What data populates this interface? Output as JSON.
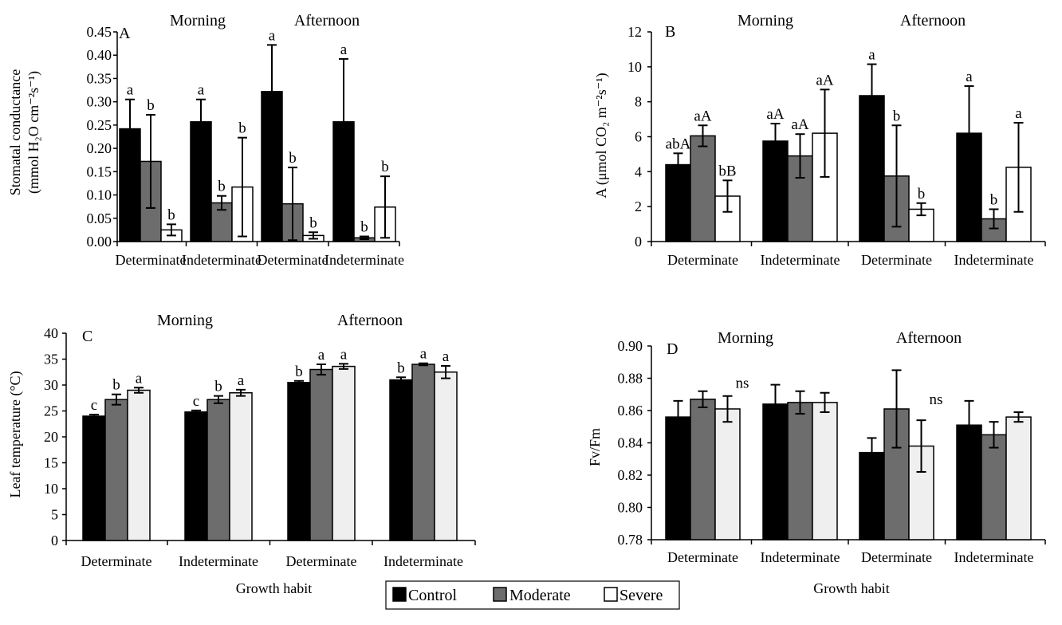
{
  "legend": {
    "entries": [
      {
        "label": "Control",
        "color": "#000000"
      },
      {
        "label": "Moderate",
        "color": "#6d6d6d"
      },
      {
        "label": "Severe",
        "color": "#ffffff"
      }
    ]
  },
  "chart_data": [
    {
      "id": "A",
      "type": "bar",
      "panel_label": "A",
      "period_labels": [
        "Morning",
        "Afternoon"
      ],
      "categories": [
        "Determinate",
        "Indeterminate",
        "Determinate",
        "Indeterminate"
      ],
      "xlabel": "",
      "ylabel": [
        "Stomatal conductance",
        "(mmol H₂O cm⁻²s⁻¹)"
      ],
      "ylim": [
        0,
        0.45
      ],
      "yticks": [
        0,
        0.05,
        0.1,
        0.15,
        0.2,
        0.25,
        0.3,
        0.35,
        0.4,
        0.45
      ],
      "ytick_decimals": 2,
      "series": [
        {
          "name": "Control",
          "color": "#000000",
          "values": [
            0.242,
            0.257,
            0.322,
            0.257
          ],
          "errors": [
            0.063,
            0.048,
            0.1,
            0.135
          ],
          "labels": [
            "a",
            "a",
            "a",
            "a"
          ]
        },
        {
          "name": "Moderate",
          "color": "#6d6d6d",
          "values": [
            0.172,
            0.083,
            0.081,
            0.008
          ],
          "errors": [
            0.1,
            0.015,
            0.078,
            0.003
          ],
          "labels": [
            "b",
            "b",
            "b",
            "b"
          ]
        },
        {
          "name": "Severe",
          "color": "#ffffff",
          "values": [
            0.025,
            0.117,
            0.013,
            0.074
          ],
          "errors": [
            0.012,
            0.106,
            0.007,
            0.066
          ],
          "labels": [
            "b",
            "b",
            "b",
            "b"
          ]
        }
      ],
      "annotations": []
    },
    {
      "id": "B",
      "type": "bar",
      "panel_label": "B",
      "period_labels": [
        "Morning",
        "Afternoon"
      ],
      "categories": [
        "Determinate",
        "Indeterminate",
        "Determinate",
        "Indeterminate"
      ],
      "xlabel": "",
      "ylabel": [
        "A (μmol CO₂ m⁻²s⁻¹)"
      ],
      "ylim": [
        0,
        12
      ],
      "yticks": [
        0,
        2,
        4,
        6,
        8,
        10,
        12
      ],
      "ytick_decimals": 0,
      "series": [
        {
          "name": "Control",
          "color": "#000000",
          "values": [
            4.4,
            5.75,
            8.35,
            6.2
          ],
          "errors": [
            0.65,
            1.0,
            1.8,
            2.7
          ],
          "labels": [
            "abA",
            "aA",
            "a",
            "a"
          ]
        },
        {
          "name": "Moderate",
          "color": "#6d6d6d",
          "values": [
            6.05,
            4.9,
            3.75,
            1.3
          ],
          "errors": [
            0.6,
            1.25,
            2.9,
            0.55
          ],
          "labels": [
            "aA",
            "aA",
            "b",
            "b"
          ]
        },
        {
          "name": "Severe",
          "color": "#ffffff",
          "values": [
            2.6,
            6.2,
            1.85,
            4.25
          ],
          "errors": [
            0.9,
            2.5,
            0.35,
            2.55
          ],
          "labels": [
            "bB",
            "aA",
            "b",
            "a"
          ]
        }
      ],
      "annotations": []
    },
    {
      "id": "C",
      "type": "bar",
      "panel_label": "C",
      "period_labels": [
        "Morning",
        "Afternoon"
      ],
      "categories": [
        "Determinate",
        "Indeterminate",
        "Determinate",
        "Indeterminate"
      ],
      "xlabel": "Growth habit",
      "ylabel": [
        "Leaf temperature (°C)"
      ],
      "ylim": [
        0,
        40
      ],
      "yticks": [
        0,
        5,
        10,
        15,
        20,
        25,
        30,
        35,
        40
      ],
      "ytick_decimals": 0,
      "series": [
        {
          "name": "Control",
          "color": "#000000",
          "values": [
            24.0,
            24.8,
            30.5,
            31.0
          ],
          "errors": [
            0.3,
            0.3,
            0.3,
            0.5
          ],
          "labels": [
            "c",
            "c",
            "b",
            "b"
          ]
        },
        {
          "name": "Moderate",
          "color": "#6d6d6d",
          "values": [
            27.2,
            27.2,
            33.0,
            34.0
          ],
          "errors": [
            1.0,
            0.7,
            1.0,
            0.2
          ],
          "labels": [
            "b",
            "b",
            "a",
            "a"
          ]
        },
        {
          "name": "Severe",
          "color": "#efefef",
          "values": [
            29.0,
            28.5,
            33.6,
            32.5
          ],
          "errors": [
            0.5,
            0.6,
            0.5,
            1.2
          ],
          "labels": [
            "a",
            "a",
            "a",
            "a"
          ]
        }
      ],
      "annotations": []
    },
    {
      "id": "D",
      "type": "bar",
      "panel_label": "D",
      "period_labels": [
        "Morning",
        "Afternoon"
      ],
      "categories": [
        "Determinate",
        "Indeterminate",
        "Determinate",
        "Indeterminate"
      ],
      "xlabel": "Growth habit",
      "ylabel": [
        "Fv/Fm"
      ],
      "ylim": [
        0.78,
        0.9
      ],
      "yticks": [
        0.78,
        0.8,
        0.82,
        0.84,
        0.86,
        0.88,
        0.9
      ],
      "ytick_decimals": 2,
      "series": [
        {
          "name": "Control",
          "color": "#000000",
          "values": [
            0.856,
            0.864,
            0.834,
            0.851
          ],
          "errors": [
            0.01,
            0.012,
            0.009,
            0.015
          ],
          "labels": [
            "",
            "",
            "",
            ""
          ]
        },
        {
          "name": "Moderate",
          "color": "#6d6d6d",
          "values": [
            0.867,
            0.865,
            0.861,
            0.845
          ],
          "errors": [
            0.005,
            0.007,
            0.024,
            0.008
          ],
          "labels": [
            "",
            "",
            "",
            ""
          ]
        },
        {
          "name": "Severe",
          "color": "#efefef",
          "values": [
            0.861,
            0.865,
            0.838,
            0.856
          ],
          "errors": [
            0.008,
            0.006,
            0.016,
            0.003
          ],
          "labels": [
            "",
            "",
            "",
            ""
          ]
        }
      ],
      "annotations": [
        {
          "text": "ns",
          "group": 1
        },
        {
          "text": "ns",
          "group": 3
        }
      ]
    }
  ]
}
